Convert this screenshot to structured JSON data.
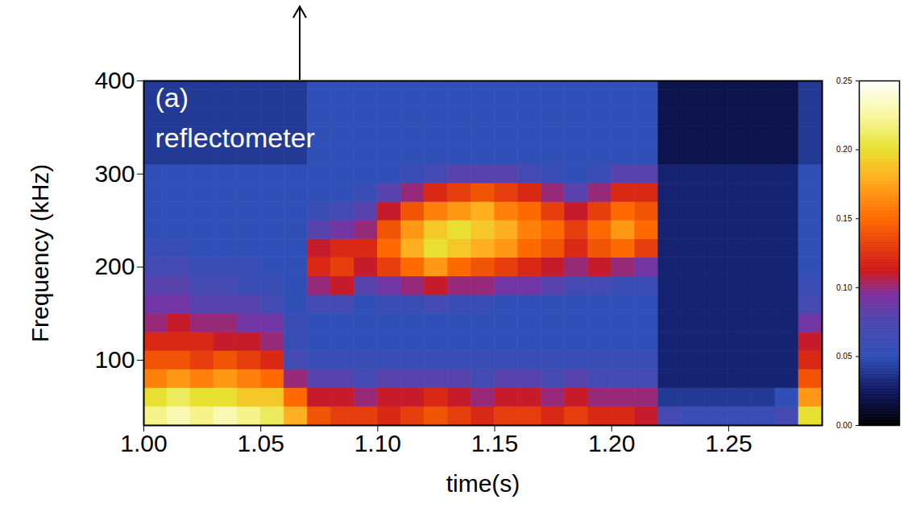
{
  "chart_data": {
    "type": "heatmap",
    "panel_label": "(a)",
    "annotation": "reflectometer",
    "x_label": "time(s)",
    "y_label": "Frequency (kHz)",
    "xlim": [
      1.0,
      1.29
    ],
    "ylim": [
      30,
      400
    ],
    "xticks": [
      {
        "value": 1.0,
        "label": "1.00"
      },
      1.05,
      {
        "value": 1.1,
        "label": "1.10"
      },
      1.15,
      {
        "value": 1.2,
        "label": "1.20"
      },
      1.25
    ],
    "yticks": [
      100,
      200,
      300,
      400
    ],
    "x_edges": [
      1.0,
      1.01,
      1.02,
      1.03,
      1.04,
      1.05,
      1.06,
      1.07,
      1.08,
      1.09,
      1.1,
      1.11,
      1.12,
      1.13,
      1.14,
      1.15,
      1.16,
      1.17,
      1.18,
      1.19,
      1.2,
      1.21,
      1.22,
      1.23,
      1.24,
      1.25,
      1.26,
      1.27,
      1.28,
      1.29
    ],
    "y_edges": [
      30,
      50,
      70,
      90,
      110,
      130,
      150,
      170,
      190,
      210,
      230,
      250,
      270,
      290,
      310,
      330,
      350,
      370,
      390,
      410
    ],
    "cells": [
      [
        0.22,
        0.23,
        0.22,
        0.23,
        0.22,
        0.21,
        0.18,
        0.14,
        0.13,
        0.13,
        0.12,
        0.13,
        0.14,
        0.13,
        0.12,
        0.13,
        0.13,
        0.12,
        0.13,
        0.12,
        0.12,
        0.11,
        0.07,
        0.06,
        0.06,
        0.06,
        0.06,
        0.07,
        0.2
      ],
      [
        0.2,
        0.21,
        0.2,
        0.2,
        0.19,
        0.19,
        0.15,
        0.11,
        0.11,
        0.1,
        0.11,
        0.11,
        0.12,
        0.11,
        0.1,
        0.11,
        0.11,
        0.1,
        0.11,
        0.1,
        0.1,
        0.1,
        0.04,
        0.04,
        0.04,
        0.04,
        0.04,
        0.05,
        0.17
      ],
      [
        0.16,
        0.17,
        0.16,
        0.17,
        0.16,
        0.15,
        0.1,
        0.08,
        0.08,
        0.07,
        0.08,
        0.08,
        0.08,
        0.08,
        0.07,
        0.08,
        0.08,
        0.07,
        0.08,
        0.07,
        0.07,
        0.07,
        0.03,
        0.03,
        0.03,
        0.03,
        0.03,
        0.03,
        0.14
      ],
      [
        0.14,
        0.14,
        0.13,
        0.14,
        0.13,
        0.12,
        0.07,
        0.06,
        0.06,
        0.06,
        0.06,
        0.06,
        0.06,
        0.06,
        0.06,
        0.06,
        0.06,
        0.06,
        0.06,
        0.06,
        0.06,
        0.06,
        0.03,
        0.03,
        0.03,
        0.03,
        0.03,
        0.03,
        0.12
      ],
      [
        0.12,
        0.12,
        0.12,
        0.11,
        0.11,
        0.1,
        0.06,
        0.05,
        0.05,
        0.05,
        0.05,
        0.05,
        0.05,
        0.05,
        0.05,
        0.05,
        0.05,
        0.05,
        0.05,
        0.05,
        0.05,
        0.05,
        0.03,
        0.03,
        0.03,
        0.03,
        0.03,
        0.03,
        0.11
      ],
      [
        0.1,
        0.11,
        0.1,
        0.1,
        0.09,
        0.09,
        0.06,
        0.05,
        0.05,
        0.05,
        0.05,
        0.05,
        0.05,
        0.05,
        0.05,
        0.05,
        0.05,
        0.05,
        0.05,
        0.05,
        0.05,
        0.05,
        0.03,
        0.03,
        0.03,
        0.03,
        0.03,
        0.03,
        0.09
      ],
      [
        0.09,
        0.09,
        0.08,
        0.08,
        0.08,
        0.07,
        0.05,
        0.07,
        0.07,
        0.05,
        0.06,
        0.06,
        0.07,
        0.06,
        0.06,
        0.05,
        0.05,
        0.05,
        0.05,
        0.05,
        0.05,
        0.05,
        0.03,
        0.03,
        0.03,
        0.03,
        0.03,
        0.03,
        0.07
      ],
      [
        0.08,
        0.08,
        0.07,
        0.07,
        0.06,
        0.06,
        0.05,
        0.1,
        0.11,
        0.08,
        0.09,
        0.1,
        0.11,
        0.1,
        0.1,
        0.09,
        0.09,
        0.08,
        0.07,
        0.07,
        0.06,
        0.06,
        0.03,
        0.03,
        0.03,
        0.03,
        0.03,
        0.03,
        0.06
      ],
      [
        0.07,
        0.07,
        0.06,
        0.06,
        0.06,
        0.05,
        0.05,
        0.12,
        0.13,
        0.11,
        0.13,
        0.15,
        0.17,
        0.15,
        0.14,
        0.13,
        0.12,
        0.11,
        0.1,
        0.11,
        0.1,
        0.09,
        0.03,
        0.03,
        0.03,
        0.03,
        0.03,
        0.03,
        0.05
      ],
      [
        0.06,
        0.06,
        0.05,
        0.05,
        0.05,
        0.05,
        0.05,
        0.11,
        0.12,
        0.12,
        0.15,
        0.18,
        0.2,
        0.19,
        0.18,
        0.17,
        0.15,
        0.14,
        0.12,
        0.14,
        0.15,
        0.13,
        0.03,
        0.03,
        0.03,
        0.03,
        0.03,
        0.03,
        0.05
      ],
      [
        0.05,
        0.05,
        0.05,
        0.05,
        0.05,
        0.05,
        0.05,
        0.08,
        0.09,
        0.1,
        0.14,
        0.17,
        0.19,
        0.2,
        0.19,
        0.18,
        0.16,
        0.15,
        0.13,
        0.15,
        0.17,
        0.15,
        0.03,
        0.03,
        0.03,
        0.03,
        0.03,
        0.03,
        0.05
      ],
      [
        0.05,
        0.05,
        0.05,
        0.05,
        0.05,
        0.05,
        0.05,
        0.06,
        0.07,
        0.08,
        0.11,
        0.14,
        0.16,
        0.17,
        0.18,
        0.16,
        0.15,
        0.13,
        0.11,
        0.13,
        0.15,
        0.14,
        0.03,
        0.03,
        0.03,
        0.03,
        0.03,
        0.03,
        0.05
      ],
      [
        0.05,
        0.05,
        0.05,
        0.05,
        0.05,
        0.05,
        0.05,
        0.05,
        0.05,
        0.06,
        0.08,
        0.1,
        0.12,
        0.13,
        0.14,
        0.13,
        0.12,
        0.1,
        0.08,
        0.1,
        0.12,
        0.12,
        0.03,
        0.03,
        0.03,
        0.03,
        0.03,
        0.03,
        0.05
      ],
      [
        0.05,
        0.05,
        0.05,
        0.05,
        0.05,
        0.05,
        0.05,
        0.05,
        0.05,
        0.05,
        0.05,
        0.06,
        0.07,
        0.08,
        0.08,
        0.08,
        0.07,
        0.06,
        0.05,
        0.06,
        0.08,
        0.08,
        0.03,
        0.03,
        0.03,
        0.03,
        0.03,
        0.03,
        0.05
      ],
      [
        0.04,
        0.04,
        0.04,
        0.04,
        0.04,
        0.04,
        0.04,
        0.05,
        0.05,
        0.05,
        0.05,
        0.05,
        0.05,
        0.05,
        0.05,
        0.05,
        0.05,
        0.05,
        0.05,
        0.05,
        0.05,
        0.05,
        0.02,
        0.02,
        0.02,
        0.02,
        0.02,
        0.02,
        0.04
      ],
      [
        0.04,
        0.04,
        0.04,
        0.04,
        0.04,
        0.04,
        0.04,
        0.05,
        0.05,
        0.05,
        0.05,
        0.05,
        0.05,
        0.05,
        0.05,
        0.05,
        0.05,
        0.05,
        0.05,
        0.05,
        0.05,
        0.05,
        0.02,
        0.02,
        0.02,
        0.02,
        0.02,
        0.02,
        0.04
      ],
      [
        0.04,
        0.04,
        0.04,
        0.04,
        0.04,
        0.04,
        0.04,
        0.05,
        0.05,
        0.05,
        0.05,
        0.05,
        0.05,
        0.05,
        0.05,
        0.05,
        0.05,
        0.05,
        0.05,
        0.05,
        0.05,
        0.05,
        0.02,
        0.02,
        0.02,
        0.02,
        0.02,
        0.02,
        0.04
      ],
      [
        0.04,
        0.04,
        0.04,
        0.04,
        0.04,
        0.04,
        0.04,
        0.05,
        0.05,
        0.05,
        0.05,
        0.05,
        0.05,
        0.05,
        0.05,
        0.05,
        0.05,
        0.05,
        0.05,
        0.05,
        0.05,
        0.05,
        0.02,
        0.02,
        0.02,
        0.02,
        0.02,
        0.02,
        0.04
      ],
      [
        0.04,
        0.04,
        0.04,
        0.04,
        0.04,
        0.04,
        0.04,
        0.05,
        0.05,
        0.05,
        0.05,
        0.05,
        0.05,
        0.05,
        0.05,
        0.05,
        0.05,
        0.05,
        0.05,
        0.05,
        0.05,
        0.05,
        0.02,
        0.02,
        0.02,
        0.02,
        0.02,
        0.02,
        0.04
      ]
    ],
    "colorbar": {
      "range": [
        0,
        0.25
      ],
      "ticks": [
        {
          "value": 0,
          "label": "0.00"
        },
        0.05,
        {
          "value": 0.1,
          "label": "0.10"
        },
        0.15,
        {
          "value": 0.2,
          "label": "0.20"
        },
        0.25
      ]
    }
  }
}
